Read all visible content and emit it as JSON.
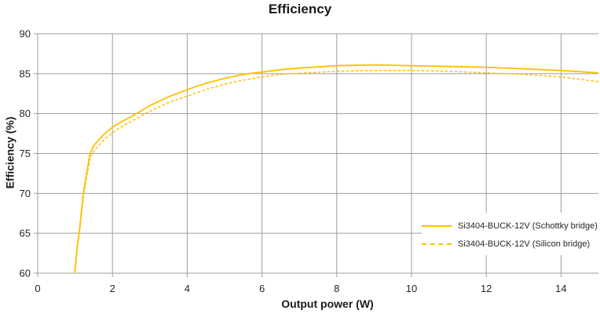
{
  "chart_data": {
    "type": "line",
    "title": "Efficiency",
    "xlabel": "Output power (W)",
    "ylabel": "Efficiency (%)",
    "xlim": [
      0,
      15
    ],
    "ylim": [
      60,
      90
    ],
    "xticks": [
      0,
      2,
      4,
      6,
      8,
      10,
      12,
      14
    ],
    "yticks": [
      60,
      65,
      70,
      75,
      80,
      85,
      90
    ],
    "grid": true,
    "legend_position": "inside-right",
    "colors": {
      "line_gold": "#FFC000",
      "gridline": "#9e9e9e",
      "axis_text": "#262626",
      "title_text": "#1a1a1a"
    },
    "x": [
      0.99,
      1.05,
      1.12,
      1.22,
      1.4,
      1.5,
      1.75,
      2,
      2.25,
      2.5,
      3,
      3.5,
      4,
      4.5,
      5,
      5.5,
      6,
      6.5,
      7,
      8,
      9,
      10,
      11,
      12,
      13,
      14,
      15
    ],
    "series": [
      {
        "name": "Si3404-BUCK-12V (Schottky bridge)",
        "style": "solid",
        "color": "#FFC000",
        "values": [
          60,
          63,
          65.5,
          70,
          75,
          76,
          77.3,
          78.3,
          79,
          79.6,
          81,
          82.1,
          83,
          83.8,
          84.4,
          84.9,
          85.2,
          85.5,
          85.7,
          86,
          86.1,
          86,
          85.9,
          85.8,
          85.6,
          85.4,
          85.1
        ]
      },
      {
        "name": "Si3404-BUCK-12V (Silicon bridge)",
        "style": "dashed",
        "color": "#FFC000",
        "values": [
          60,
          62.8,
          65.2,
          69.6,
          74.4,
          75.3,
          76.6,
          77.6,
          78.4,
          79,
          80.3,
          81.4,
          82.2,
          83,
          83.7,
          84.2,
          84.6,
          84.9,
          85.05,
          85.3,
          85.4,
          85.4,
          85.3,
          85.1,
          84.9,
          84.6,
          84
        ]
      }
    ]
  }
}
